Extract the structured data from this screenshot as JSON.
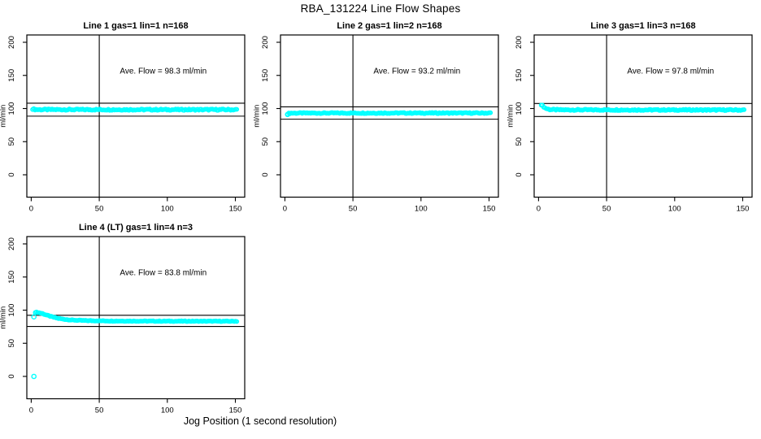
{
  "page": {
    "main_title": "RBA_131224  Line Flow Shapes",
    "x_axis_label": "Jog Position (1 second resolution)",
    "background_color": "#FFFFFF",
    "marker_color": "#00FFFF",
    "axis_color": "#000000"
  },
  "chart_data": [
    {
      "type": "scatter",
      "title": "Line 1 gas=1 lin=1 n=168",
      "line": 1,
      "gas": 1,
      "lin": 1,
      "n": 168,
      "annotation": "Ave. Flow =  98.3  ml/min",
      "ave_flow_ml_min": 98.3,
      "ylabel": "ml/min",
      "x_ticks": [
        0,
        50,
        100,
        150
      ],
      "y_ticks": [
        0,
        50,
        100,
        150,
        200
      ],
      "vline_x": 50,
      "ref_line_high": 108.1,
      "ref_line_low": 88.5,
      "points_x_range": [
        1,
        151
      ],
      "n_markers": 168,
      "profile_points": [
        [
          1,
          99.5
        ],
        [
          2,
          98.8
        ],
        [
          5,
          98.4
        ],
        [
          75,
          98.3
        ],
        [
          151,
          98.3
        ]
      ],
      "extra_points": [],
      "noise_amplitude": 1.0
    },
    {
      "type": "scatter",
      "title": "Line 2 gas=1 lin=2 n=168",
      "line": 2,
      "gas": 1,
      "lin": 2,
      "n": 168,
      "annotation": "Ave. Flow =  93.2  ml/min",
      "ave_flow_ml_min": 93.2,
      "ylabel": "ml/min",
      "x_ticks": [
        0,
        50,
        100,
        150
      ],
      "y_ticks": [
        0,
        50,
        100,
        150,
        200
      ],
      "vline_x": 50,
      "ref_line_high": 102.5,
      "ref_line_low": 83.9,
      "points_x_range": [
        2,
        151
      ],
      "n_markers": 168,
      "profile_points": [
        [
          2,
          92.2
        ],
        [
          4,
          93.1
        ],
        [
          75,
          93.2
        ],
        [
          151,
          93.2
        ]
      ],
      "extra_points": [
        [
          2,
          91
        ]
      ],
      "noise_amplitude": 0.8
    },
    {
      "type": "scatter",
      "title": "Line 3 gas=1 lin=3 n=168",
      "line": 3,
      "gas": 1,
      "lin": 3,
      "n": 168,
      "annotation": "Ave. Flow =  97.8  ml/min",
      "ave_flow_ml_min": 97.8,
      "ylabel": "ml/min",
      "x_ticks": [
        0,
        50,
        100,
        150
      ],
      "y_ticks": [
        0,
        50,
        100,
        150,
        200
      ],
      "vline_x": 50,
      "ref_line_high": 107.6,
      "ref_line_low": 88.0,
      "points_x_range": [
        2,
        151
      ],
      "n_markers": 168,
      "profile_points": [
        [
          2,
          106
        ],
        [
          3,
          104
        ],
        [
          5,
          100.5
        ],
        [
          8,
          98.5
        ],
        [
          15,
          98
        ],
        [
          151,
          97.8
        ]
      ],
      "extra_points": [],
      "noise_amplitude": 0.9
    },
    {
      "type": "scatter",
      "title": "Line 4 (LT) gas=1 lin=4 n=3",
      "line": 4,
      "gas": 1,
      "lin": 4,
      "n": 3,
      "annotation": "Ave. Flow =  83.8  ml/min",
      "ave_flow_ml_min": 83.8,
      "ylabel": "ml/min",
      "x_ticks": [
        0,
        50,
        100,
        150
      ],
      "y_ticks": [
        0,
        50,
        100,
        150,
        200
      ],
      "vline_x": 50,
      "ref_line_high": 92.2,
      "ref_line_low": 75.4,
      "points_x_range": [
        3,
        151
      ],
      "n_markers": 165,
      "profile_points": [
        [
          3,
          97
        ],
        [
          5,
          96.5
        ],
        [
          8,
          95
        ],
        [
          12,
          92
        ],
        [
          16,
          89.5
        ],
        [
          20,
          87.5
        ],
        [
          25,
          86
        ],
        [
          30,
          85
        ],
        [
          40,
          84.2
        ],
        [
          60,
          83.6
        ],
        [
          100,
          83.3
        ],
        [
          151,
          83.2
        ]
      ],
      "extra_points": [
        [
          2,
          0
        ],
        [
          2,
          90
        ]
      ],
      "noise_amplitude": 0.5
    }
  ]
}
